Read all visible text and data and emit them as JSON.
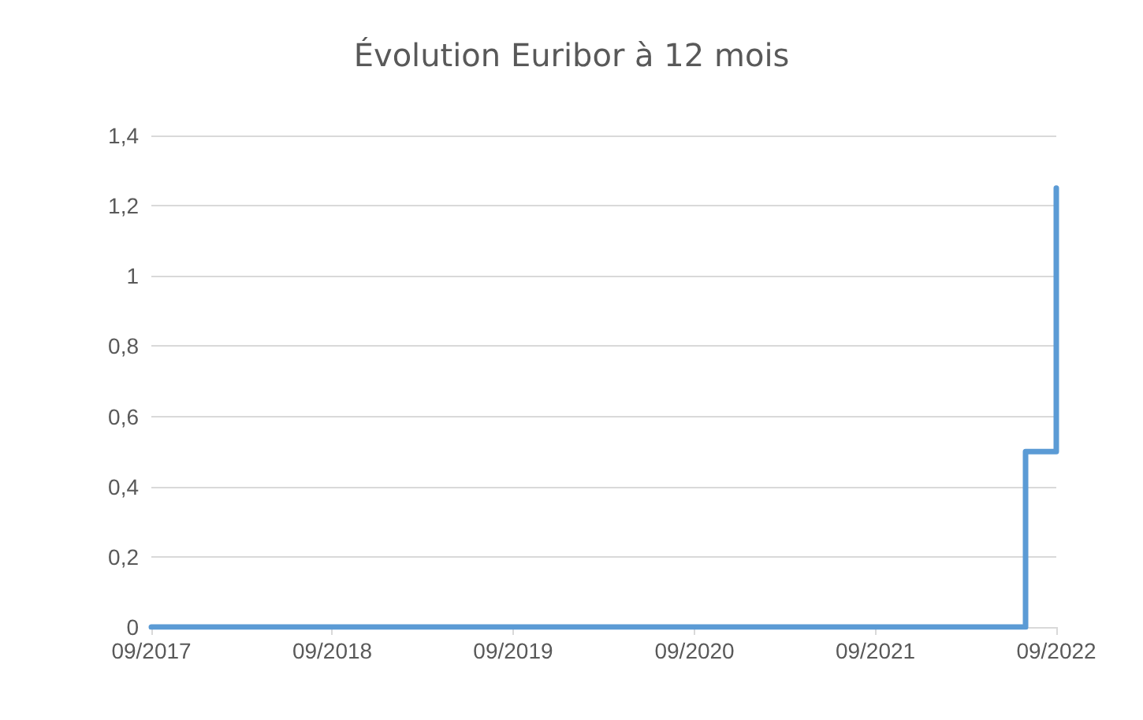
{
  "chart_data": {
    "type": "step",
    "title": "Évolution Euribor à 12 mois",
    "x": [
      "2017-09",
      "2022-07",
      "2022-09"
    ],
    "series": [
      {
        "color": "#5b9bd5",
        "values": [
          0,
          0.5,
          1.25
        ]
      }
    ],
    "xlim": [
      "2017-09",
      "2022-09"
    ],
    "xticks": [
      {
        "value": "2017-09",
        "label": "09/2017"
      },
      {
        "value": "2018-09",
        "label": "09/2018"
      },
      {
        "value": "2019-09",
        "label": "09/2019"
      },
      {
        "value": "2020-09",
        "label": "09/2020"
      },
      {
        "value": "2021-09",
        "label": "09/2021"
      },
      {
        "value": "2022-09",
        "label": "09/2022"
      }
    ],
    "ylim": [
      0,
      1.4
    ],
    "yticks": [
      0,
      {
        "value": 0.2,
        "label": "0,2"
      },
      {
        "value": 0.4,
        "label": "0,4"
      },
      {
        "value": 0.6,
        "label": "0,6"
      },
      {
        "value": 0.8,
        "label": "0,8"
      },
      1,
      {
        "value": 1.2,
        "label": "1,2"
      },
      {
        "value": 1.4,
        "label": "1,4"
      }
    ],
    "grid": "y",
    "marker": "none",
    "line_style": "solid"
  }
}
